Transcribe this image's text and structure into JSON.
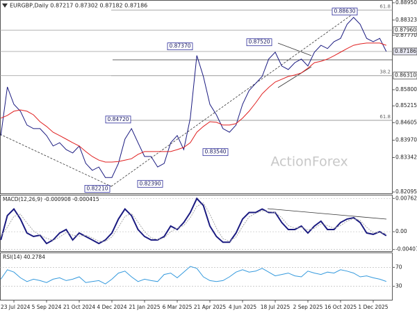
{
  "chart_data": [
    {
      "type": "line",
      "title": "EURGBP,Daily  0.87217 0.87302 0.87182 0.87186",
      "watermark": "ActionForex",
      "categories": [
        null,
        null,
        "23 Jul 2024",
        null,
        null,
        null,
        null,
        "5 Sep 2024",
        null,
        null,
        null,
        null,
        "21 Oct 2024",
        null,
        null,
        null,
        null,
        "4 Dec 2024",
        null,
        null,
        null,
        null,
        "21 Jan 2025",
        null,
        null,
        null,
        null,
        "6 Mar 2025",
        null,
        null,
        null,
        null,
        "21 Apr 2025",
        null,
        null,
        null,
        null,
        "4 Jun 2025",
        null,
        null,
        null,
        null,
        "18 Jul 2025",
        null,
        null,
        null,
        null,
        "2 Sep 2025",
        null,
        null,
        null,
        null,
        "16 Oct 2025",
        null,
        null,
        null,
        null,
        "1 Dec 2025",
        null,
        null
      ],
      "series": [
        {
          "color": "#1a1a80",
          "values": [
            0.8414,
            0.859,
            0.8527,
            0.8502,
            0.8452,
            0.8439,
            0.8439,
            0.8414,
            0.8376,
            0.8388,
            0.8363,
            0.8351,
            0.8376,
            0.8313,
            0.8288,
            0.83,
            0.8262,
            0.8262,
            0.8313,
            0.8401,
            0.8439,
            0.8388,
            0.8338,
            0.8338,
            0.83,
            0.8313,
            0.8388,
            0.8414,
            0.8363,
            0.8477,
            0.8704,
            0.8628,
            0.8527,
            0.8489,
            0.8439,
            0.8426,
            0.8452,
            0.8527,
            0.8577,
            0.8603,
            0.8628,
            0.8691,
            0.8716,
            0.8666,
            0.8653,
            0.8678,
            0.8691,
            0.8666,
            0.8716,
            0.8741,
            0.8729,
            0.8754,
            0.8766,
            0.8817,
            0.8842,
            0.8817,
            0.8766,
            0.8754,
            0.8766,
            0.87186
          ]
        },
        {
          "color": "#e02020",
          "values": [
            0.8477,
            0.8487,
            0.8502,
            0.8507,
            0.8502,
            0.8489,
            0.8464,
            0.8447,
            0.8426,
            0.8414,
            0.8401,
            0.8388,
            0.8376,
            0.8356,
            0.8338,
            0.8325,
            0.8318,
            0.8318,
            0.832,
            0.8325,
            0.833,
            0.8346,
            0.8356,
            0.8356,
            0.8356,
            0.8356,
            0.8356,
            0.8363,
            0.8371,
            0.8388,
            0.8426,
            0.8447,
            0.8464,
            0.8462,
            0.8452,
            0.8452,
            0.8457,
            0.8477,
            0.8502,
            0.8532,
            0.8565,
            0.8588,
            0.8608,
            0.8618,
            0.8628,
            0.8633,
            0.8641,
            0.8658,
            0.8678,
            0.8683,
            0.8691,
            0.8703,
            0.8716,
            0.8729,
            0.8741,
            0.8746,
            0.8749,
            0.8749,
            0.8749,
            0.8741
          ]
        }
      ],
      "ylim": [
        0.8202,
        0.8905
      ],
      "yticks": [
        {
          "value": 0.8895,
          "label": "0.88950"
        },
        {
          "value": 0.88323,
          "label": "0.88323"
        },
        {
          "value": 0.8777,
          "label": "0.87770"
        },
        {
          "value": 0.858,
          "label": "0.85800"
        },
        {
          "value": 0.85215,
          "label": "0.85215"
        },
        {
          "value": 0.84605,
          "label": "0.84605"
        },
        {
          "value": 0.8397,
          "label": "0.83970"
        },
        {
          "value": 0.83342,
          "label": "0.83342"
        },
        {
          "value": 0.82095,
          "label": "0.82095"
        }
      ],
      "price_levels": [
        {
          "value": 0.8796,
          "label": "0.87960"
        },
        {
          "value": 0.87186,
          "label": "0.87186"
        },
        {
          "value": 0.8631,
          "label": "0.86310"
        }
      ],
      "fib_levels": [
        {
          "value": 0.8868,
          "label": "61.8"
        },
        {
          "value": 0.8631,
          "label": "38.2"
        },
        {
          "value": 0.8469,
          "label": "61.8"
        }
      ],
      "callouts": [
        {
          "value": 0.8863,
          "label": "0.88630"
        },
        {
          "value": 0.8737,
          "label": "0.87370"
        },
        {
          "value": 0.8752,
          "label": "0.87520"
        },
        {
          "value": 0.8472,
          "label": "0.84720"
        },
        {
          "value": 0.8354,
          "label": "0.83540"
        },
        {
          "value": 0.8221,
          "label": "0.82210"
        },
        {
          "value": 0.8239,
          "label": "0.82390"
        }
      ]
    },
    {
      "type": "line",
      "title": "MACD(12,26,9) -0.000908 -0.000415",
      "series": [
        {
          "color": "#1a1a80",
          "values": [
            -0.0019,
            0.0037,
            0.0052,
            0.0029,
            -0.0003,
            -0.0011,
            -0.0008,
            -0.0027,
            -0.0019,
            -0.0003,
            0.0005,
            -0.0019,
            -0.0003,
            -0.0011,
            -0.0019,
            -0.0027,
            -0.0019,
            -0.0003,
            0.0029,
            0.0052,
            0.0037,
            0.0005,
            -0.0011,
            -0.0019,
            -0.0019,
            -0.0011,
            0.0013,
            0.0005,
            0.0021,
            0.0044,
            0.0076,
            0.006,
            0.0013,
            -0.0011,
            -0.0024,
            -0.0024,
            -0.0003,
            0.0029,
            0.0044,
            0.0044,
            0.0052,
            0.0044,
            0.0044,
            0.0021,
            0.0005,
            0.0005,
            0.0013,
            -0.0003,
            0.0013,
            0.0024,
            0.0005,
            0.0005,
            0.0021,
            0.0029,
            0.0032,
            0.0021,
            -0.0003,
            -0.0006,
            0,
            -0.000908
          ]
        },
        {
          "color": "#a8a8a8",
          "dashed": true,
          "values": [
            -0.001,
            0.001,
            0.0035,
            0.004,
            0.002,
            0.0002,
            -0.0008,
            -0.0015,
            -0.002,
            -0.0012,
            -0.0002,
            -0.0008,
            -0.001,
            -0.0008,
            -0.0014,
            -0.0022,
            -0.0022,
            -0.0012,
            0.001,
            0.0035,
            0.0042,
            0.0022,
            0.0,
            -0.0014,
            -0.0018,
            -0.0014,
            0.0,
            0.0008,
            0.0014,
            0.0032,
            0.0058,
            0.0066,
            0.004,
            0.0008,
            -0.0016,
            -0.0022,
            -0.0012,
            0.0012,
            0.0034,
            0.0042,
            0.0048,
            0.0046,
            0.0044,
            0.0032,
            0.0014,
            0.0008,
            0.001,
            0.0004,
            0.0008,
            0.0018,
            0.0014,
            0.0008,
            0.0014,
            0.0024,
            0.003,
            0.0026,
            0.001,
            -0.0002,
            -0.0002,
            -0.000415
          ]
        }
      ],
      "ylim": [
        -0.0046,
        0.0083
      ],
      "yticks": [
        0.007623,
        {
          "value": 0,
          "label": "0.00"
        },
        -0.004073
      ],
      "grid": true
    },
    {
      "type": "line",
      "title": "RSI(14) 40.2784",
      "series": [
        {
          "color": "#3399dd",
          "values": [
            45,
            65,
            60,
            48,
            40,
            45,
            42,
            38,
            45,
            48,
            42,
            45,
            50,
            38,
            40,
            42,
            35,
            45,
            58,
            62,
            50,
            40,
            45,
            42,
            40,
            55,
            58,
            48,
            60,
            72,
            68,
            50,
            42,
            40,
            42,
            50,
            60,
            65,
            60,
            62,
            68,
            60,
            52,
            55,
            58,
            52,
            50,
            62,
            58,
            55,
            60,
            58,
            65,
            62,
            58,
            50,
            52,
            48,
            45,
            40.2784
          ]
        }
      ],
      "ylim": [
        0,
        100
      ],
      "yticks": [
        70,
        30
      ],
      "grid": true
    }
  ]
}
